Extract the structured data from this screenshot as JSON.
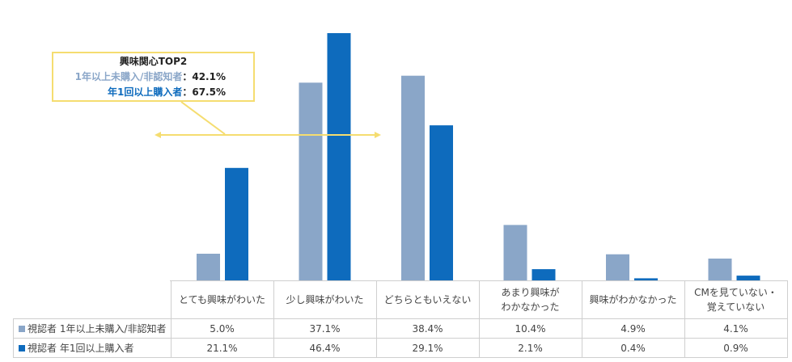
{
  "callout": {
    "title": "興味関心TOP2",
    "line1_label": "1年以上未購入/非認知者",
    "line1_value": "：42.1%",
    "line2_label": "年1回以上購入者",
    "line2_value": "：67.5%"
  },
  "chart_data": {
    "type": "bar",
    "categories": [
      "とても興味がわいた",
      "少し興味がわいた",
      "どちらともいえない",
      "あまり興味が\nわかなかった",
      "興味がわかなかった",
      "CMを見ていない・\n覚えていない"
    ],
    "series": [
      {
        "name": "視認者 1年以上未購入/非認知者",
        "color": "#8aa6c8",
        "values": [
          5.0,
          37.1,
          38.4,
          10.4,
          4.9,
          4.1
        ],
        "labels": [
          "5.0%",
          "37.1%",
          "38.4%",
          "10.4%",
          "4.9%",
          "4.1%"
        ]
      },
      {
        "name": "視認者 年1回以上購入者",
        "color": "#0e6bbd",
        "values": [
          21.1,
          46.4,
          29.1,
          2.1,
          0.4,
          0.9
        ],
        "labels": [
          "21.1%",
          "46.4%",
          "29.1%",
          "2.1%",
          "0.4%",
          "0.9%"
        ]
      }
    ],
    "ylim": [
      0,
      47
    ],
    "grid": false,
    "legend": "table"
  }
}
